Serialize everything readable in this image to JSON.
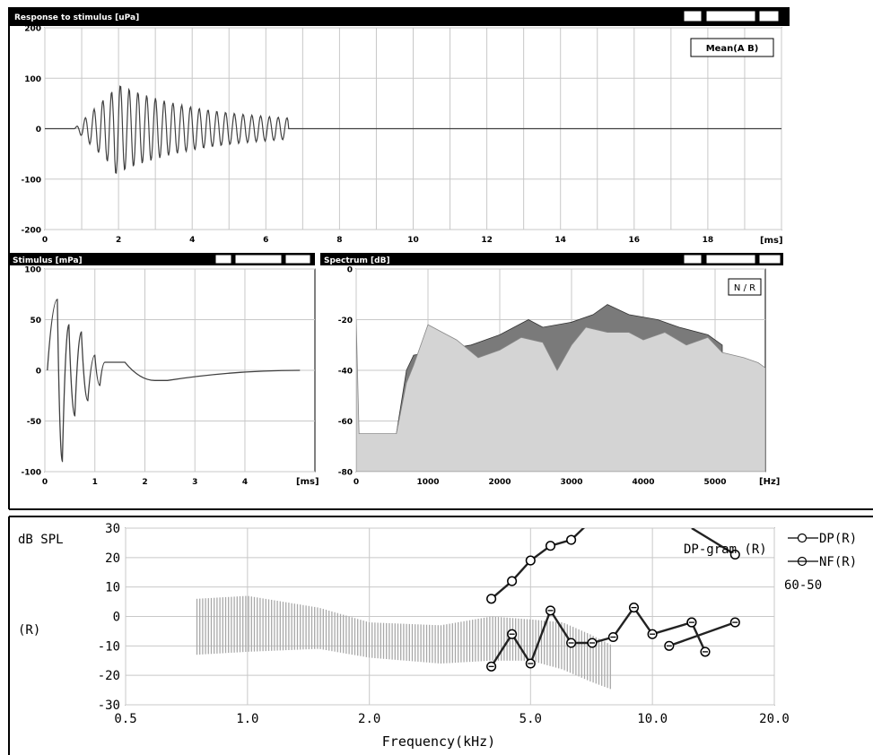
{
  "colors": {
    "frame": "#000000",
    "titlebar": "#000000",
    "titletext": "#ffffff",
    "grid": "#c8c8c8",
    "trace": "#404040",
    "spectrumLight": "#d4d4d4",
    "spectrumDark": "#7a7a7a",
    "bar": "#a8a8a8"
  },
  "panels": {
    "response": {
      "title": "Response to stimulus [uPa]",
      "legend": "Mean(A B)",
      "unit": "[ms]",
      "xticks": [
        "0",
        "2",
        "4",
        "6",
        "8",
        "10",
        "12",
        "14",
        "16",
        "18"
      ],
      "yticks": [
        "200",
        "100",
        "0",
        "-100",
        "-200"
      ]
    },
    "stimulus": {
      "title": "Stimulus [mPa]",
      "unit": "[ms]",
      "xticks": [
        "0",
        "1",
        "2",
        "3",
        "4"
      ],
      "yticks": [
        "100",
        "50",
        "0",
        "-50",
        "-100"
      ]
    },
    "spectrum": {
      "title": "Spectrum [dB]",
      "legend": "N / R",
      "unit": "[Hz]",
      "xticks": [
        "0",
        "1000",
        "2000",
        "3000",
        "4000",
        "5000"
      ],
      "yticks": [
        "0",
        "-20",
        "-40",
        "-60",
        "-80"
      ]
    }
  },
  "dpgram": {
    "ylabel": "dB SPL",
    "side_label": "(R)",
    "title": "DP-gram (R)",
    "xlabel": "Frequency(kHz)",
    "legend": [
      "DP(R)",
      "NF(R)"
    ],
    "level_note": "60-50",
    "xticks": [
      "0.5",
      "1.0",
      "2.0",
      "5.0",
      "10.0",
      "20.0"
    ],
    "yticks": [
      "30",
      "20",
      "10",
      "0",
      "-10",
      "-20",
      "-30"
    ]
  },
  "chart_data": [
    {
      "type": "line",
      "title": "Response to stimulus [uPa]",
      "xlabel": "[ms]",
      "xlim": [
        0,
        20
      ],
      "ylim": [
        -200,
        200
      ],
      "series": [
        {
          "name": "Mean(A B)",
          "description": "damped oscillation 1–6.5 ms, peaks about ±80 uPa, flat after 7 ms"
        }
      ]
    },
    {
      "type": "line",
      "title": "Stimulus [mPa]",
      "xlabel": "[ms]",
      "xlim": [
        0,
        5
      ],
      "ylim": [
        -100,
        100
      ],
      "x": [
        0.25,
        0.35,
        0.48,
        0.6,
        0.73,
        0.86,
        1.0,
        1.1,
        1.2,
        1.3,
        1.4,
        1.5,
        1.6,
        2.2,
        2.45
      ],
      "y": [
        70,
        -90,
        45,
        -45,
        38,
        -30,
        15,
        -15,
        8,
        8,
        8,
        8,
        8,
        -10,
        -10
      ]
    },
    {
      "type": "area",
      "title": "Spectrum [dB]",
      "xlabel": "[Hz]",
      "xlim": [
        0,
        5700
      ],
      "ylim": [
        -80,
        0
      ],
      "series": [
        {
          "name": "N",
          "x": [
            0,
            40,
            80,
            560,
            700,
            800,
            1000,
            1200,
            1400,
            1700,
            2000,
            2300,
            2600,
            2800,
            3000,
            3200,
            3500,
            3800,
            4000,
            4300,
            4600,
            4900,
            5100,
            5400,
            5600,
            5700
          ],
          "y": [
            -20,
            -65,
            -65,
            -65,
            -45,
            -38,
            -22,
            -25,
            -28,
            -35,
            -32,
            -27,
            -29,
            -40,
            -30,
            -23,
            -25,
            -25,
            -28,
            -25,
            -30,
            -27,
            -33,
            -35,
            -37,
            -39
          ]
        },
        {
          "name": "R",
          "x": [
            560,
            700,
            800,
            1600,
            2000,
            2400,
            2600,
            3000,
            3300,
            3500,
            3800,
            4200,
            4500,
            4900,
            5100
          ],
          "y": [
            -65,
            -40,
            -34,
            -30,
            -26,
            -20,
            -23,
            -21,
            -18,
            -14,
            -18,
            -20,
            -23,
            -26,
            -30
          ]
        }
      ]
    },
    {
      "type": "line",
      "title": "DP-gram (R)",
      "xlabel": "Frequency(kHz)",
      "ylabel": "dB SPL",
      "xscale": "log",
      "xlim": [
        0.5,
        20
      ],
      "ylim": [
        -30,
        30
      ],
      "series": [
        {
          "name": "DP(R)",
          "x": [
            4.0,
            4.5,
            5.0,
            5.6,
            6.3,
            7.0
          ],
          "y": [
            6,
            12,
            19,
            24,
            26,
            32
          ]
        },
        {
          "name": "DP(R)",
          "x": [
            12.5,
            16.0
          ],
          "y": [
            30,
            21
          ]
        },
        {
          "name": "NF(R)",
          "x": [
            4.0,
            4.5,
            5.0,
            5.6,
            6.3,
            7.1,
            8.0,
            9.0,
            10.0,
            12.5
          ],
          "y": [
            -17,
            -6,
            -16,
            2,
            -9,
            -9,
            -7,
            3,
            -6,
            -2
          ]
        },
        {
          "name": "NF(R)",
          "x": [
            11.0,
            16.0
          ],
          "y": [
            -10,
            -2
          ]
        },
        {
          "name": "NF(R)",
          "x": [
            12.5,
            13.5
          ],
          "y": [
            -2,
            -12
          ]
        }
      ],
      "noise_band": {
        "x": [
          0.75,
          1.0,
          1.5,
          2.0,
          3.0,
          4.0,
          5.0,
          6.0,
          7.0,
          8.0
        ],
        "upper": [
          6,
          7,
          3,
          -2,
          -3,
          0,
          -1,
          -2,
          -6,
          -10
        ],
        "lower": [
          -13,
          -12,
          -11,
          -14,
          -16,
          -15,
          -15,
          -18,
          -22,
          -25
        ]
      }
    }
  ]
}
